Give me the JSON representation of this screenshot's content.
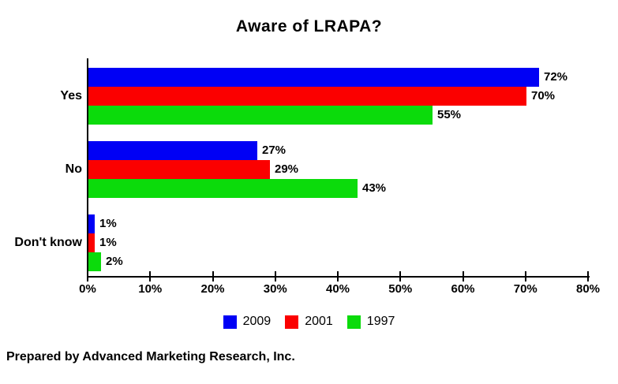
{
  "title": "Aware of LRAPA?",
  "footer": "Prepared by Advanced Marketing Research, Inc.",
  "chart_data": {
    "type": "bar",
    "orientation": "horizontal",
    "title": "Aware of LRAPA?",
    "categories": [
      "Yes",
      "No",
      "Don't know"
    ],
    "series": [
      {
        "name": "2009",
        "color": "#0000F5",
        "values": [
          72,
          27,
          1
        ]
      },
      {
        "name": "2001",
        "color": "#FB0000",
        "values": [
          70,
          29,
          1
        ]
      },
      {
        "name": "1997",
        "color": "#0BDB0B",
        "values": [
          55,
          43,
          2
        ]
      }
    ],
    "value_suffix": "%",
    "xlim": [
      0,
      80
    ],
    "x_tick_labels": [
      "0%",
      "10%",
      "20%",
      "30%",
      "40%",
      "50%",
      "60%",
      "70%",
      "80%"
    ],
    "grid": false,
    "legend_position": "bottom",
    "axis_color": "#000000",
    "label_color": "#000000"
  }
}
